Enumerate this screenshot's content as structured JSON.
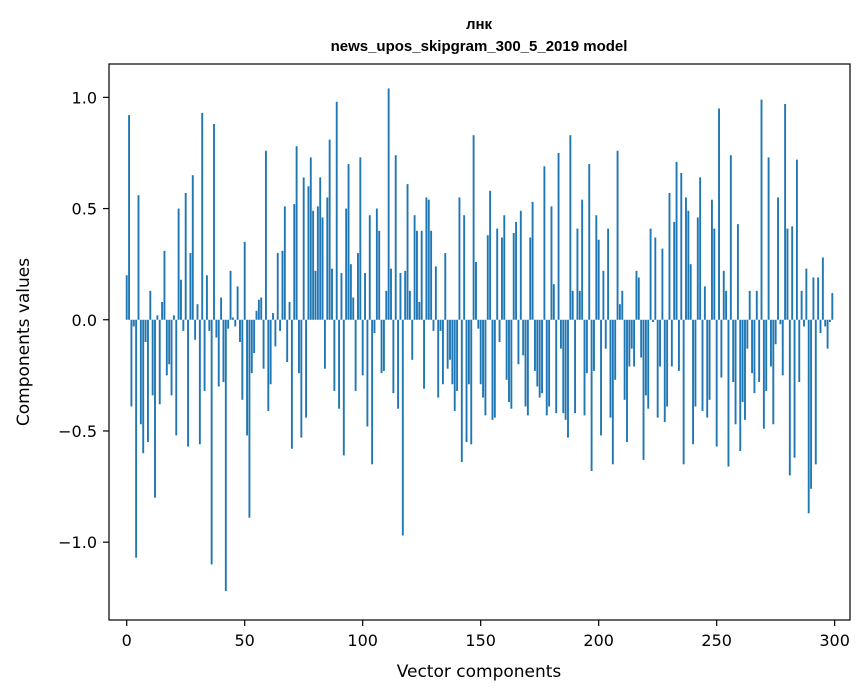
{
  "chart_data": {
    "type": "bar",
    "title": "лнк",
    "subtitle": "news_upos_skipgram_300_5_2019 model",
    "xlabel": "Vector components",
    "ylabel": "Components values",
    "xlim": [
      -7.5,
      306.5
    ],
    "ylim": [
      -1.35,
      1.15
    ],
    "x_ticks": [
      0,
      50,
      100,
      150,
      200,
      250,
      300
    ],
    "x_tick_labels": [
      "0",
      "50",
      "100",
      "150",
      "200",
      "250",
      "300"
    ],
    "y_ticks": [
      -1.0,
      -0.5,
      0.0,
      0.5,
      1.0
    ],
    "y_tick_labels": [
      "−1.0",
      "−0.5",
      "0.0",
      "0.5",
      "1.0"
    ],
    "grid": false,
    "legend": "none",
    "bar_color": "#1f77b4",
    "values": [
      0.2,
      0.92,
      -0.39,
      -0.03,
      -1.07,
      0.56,
      -0.47,
      -0.6,
      -0.1,
      -0.55,
      0.13,
      -0.34,
      -0.8,
      0.02,
      -0.38,
      0.08,
      0.31,
      -0.25,
      -0.2,
      -0.34,
      0.02,
      -0.52,
      0.5,
      0.18,
      -0.05,
      0.57,
      -0.57,
      0.3,
      0.65,
      -0.09,
      0.07,
      -0.56,
      0.93,
      -0.32,
      0.2,
      -0.05,
      -1.1,
      0.88,
      -0.08,
      -0.3,
      0.1,
      -0.28,
      -1.22,
      -0.04,
      0.22,
      0.01,
      -0.03,
      0.15,
      -0.1,
      -0.36,
      0.35,
      -0.52,
      -0.89,
      -0.24,
      -0.15,
      0.04,
      0.09,
      0.1,
      -0.22,
      0.76,
      -0.41,
      -0.29,
      0.03,
      -0.12,
      0.3,
      -0.05,
      0.31,
      0.51,
      -0.19,
      0.08,
      -0.58,
      0.52,
      0.78,
      -0.24,
      -0.53,
      0.64,
      -0.44,
      0.6,
      0.73,
      0.49,
      0.22,
      0.51,
      0.64,
      0.46,
      -0.22,
      0.55,
      0.81,
      0.23,
      -0.32,
      0.98,
      -0.4,
      0.21,
      -0.61,
      0.5,
      0.7,
      0.25,
      0.1,
      -0.32,
      0.3,
      0.73,
      -0.25,
      0.21,
      -0.48,
      0.47,
      -0.65,
      -0.06,
      0.5,
      0.4,
      -0.24,
      -0.23,
      0.13,
      1.04,
      0.23,
      -0.33,
      0.74,
      -0.4,
      0.21,
      -0.97,
      0.22,
      0.61,
      0.13,
      -0.18,
      0.47,
      0.4,
      0.08,
      0.4,
      -0.31,
      0.55,
      0.54,
      0.4,
      -0.05,
      0.24,
      -0.35,
      -0.05,
      -0.29,
      0.3,
      -0.22,
      -0.18,
      -0.29,
      -0.41,
      -0.32,
      0.55,
      -0.64,
      0.47,
      -0.55,
      -0.29,
      -0.56,
      0.83,
      0.26,
      -0.04,
      -0.29,
      -0.35,
      -0.43,
      0.38,
      0.58,
      -0.45,
      -0.44,
      0.41,
      -0.1,
      0.37,
      0.47,
      -0.27,
      -0.37,
      -0.4,
      0.39,
      0.44,
      -0.2,
      0.49,
      -0.16,
      -0.39,
      -0.43,
      0.37,
      0.53,
      -0.23,
      -0.3,
      -0.35,
      -0.33,
      0.69,
      -0.43,
      -0.39,
      0.51,
      0.16,
      -0.42,
      0.75,
      -0.13,
      -0.42,
      -0.45,
      -0.53,
      0.83,
      0.13,
      -0.42,
      0.41,
      0.13,
      0.54,
      -0.43,
      -0.24,
      0.7,
      -0.68,
      -0.23,
      0.47,
      0.36,
      -0.52,
      0.22,
      -0.13,
      0.41,
      -0.44,
      -0.65,
      -0.27,
      0.76,
      0.07,
      0.13,
      -0.36,
      -0.55,
      -0.21,
      -0.13,
      -0.21,
      0.22,
      0.19,
      -0.17,
      -0.63,
      -0.34,
      -0.4,
      0.41,
      -0.01,
      0.37,
      -0.44,
      -0.21,
      0.32,
      -0.46,
      -0.39,
      0.57,
      -0.21,
      0.44,
      0.71,
      -0.23,
      0.66,
      -0.65,
      0.55,
      0.49,
      0.25,
      -0.56,
      -0.39,
      0.46,
      0.64,
      -0.41,
      0.15,
      -0.44,
      -0.36,
      0.54,
      0.41,
      -0.57,
      0.95,
      -0.26,
      0.22,
      0.13,
      -0.66,
      0.74,
      -0.28,
      -0.47,
      0.43,
      -0.59,
      -0.37,
      -0.45,
      -0.13,
      0.13,
      -0.24,
      -0.33,
      0.13,
      -0.28,
      0.99,
      -0.49,
      -0.32,
      0.73,
      -0.21,
      -0.47,
      -0.11,
      0.55,
      -0.02,
      -0.25,
      0.97,
      0.41,
      -0.7,
      0.42,
      -0.62,
      0.72,
      -0.28,
      0.13,
      -0.03,
      0.23,
      -0.87,
      -0.76,
      0.19,
      -0.65,
      0.19,
      -0.06,
      0.28,
      -0.03,
      -0.13,
      -0.01,
      0.12,
      0.0
    ]
  }
}
